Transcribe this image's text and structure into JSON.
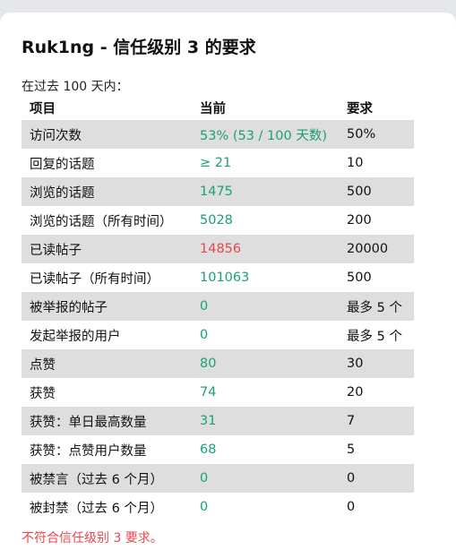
{
  "title": "Ruk1ng - 信任级别 3 的要求",
  "period": "在过去 100 天内：",
  "columns": {
    "item": "项目",
    "current": "当前",
    "required": "要求"
  },
  "rows": [
    {
      "item": "访问次数",
      "current": "53% (53 / 100 天数)",
      "required": "50%",
      "met": true
    },
    {
      "item": "回复的话题",
      "current": "≥ 21",
      "required": "10",
      "met": true
    },
    {
      "item": "浏览的话题",
      "current": "1475",
      "required": "500",
      "met": true
    },
    {
      "item": "浏览的话题（所有时间）",
      "current": "5028",
      "required": "200",
      "met": true
    },
    {
      "item": "已读帖子",
      "current": "14856",
      "required": "20000",
      "met": false
    },
    {
      "item": "已读帖子（所有时间）",
      "current": "101063",
      "required": "500",
      "met": true
    },
    {
      "item": "被举报的帖子",
      "current": "0",
      "required": "最多 5 个",
      "met": true
    },
    {
      "item": "发起举报的用户",
      "current": "0",
      "required": "最多 5 个",
      "met": true
    },
    {
      "item": "点赞",
      "current": "80",
      "required": "30",
      "met": true
    },
    {
      "item": "获赞",
      "current": "74",
      "required": "20",
      "met": true
    },
    {
      "item": "获赞：单日最高数量",
      "current": "31",
      "required": "7",
      "met": true
    },
    {
      "item": "获赞：点赞用户数量",
      "current": "68",
      "required": "5",
      "met": true
    },
    {
      "item": "被禁言（过去 6 个月）",
      "current": "0",
      "required": "0",
      "met": true
    },
    {
      "item": "被封禁（过去 6 个月）",
      "current": "0",
      "required": "0",
      "met": true
    }
  ],
  "summary": "不符合信任级别 3 要求。",
  "colors": {
    "pass": "#1aa079",
    "fail": "#e8474f",
    "stripe": "#dedede"
  }
}
